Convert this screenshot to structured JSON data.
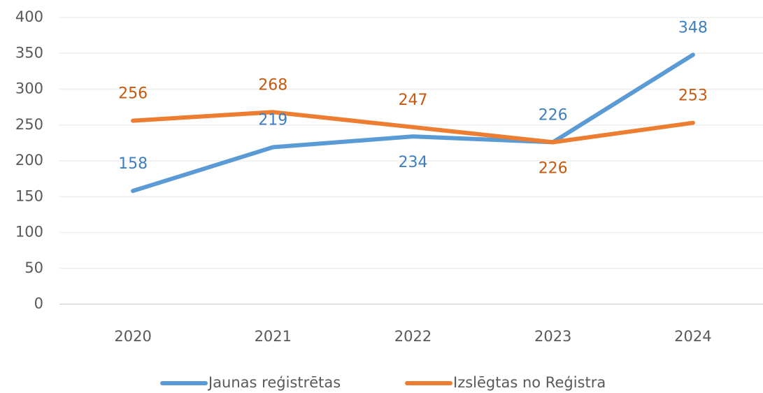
{
  "chart_data": {
    "type": "line",
    "categories": [
      "2020",
      "2021",
      "2022",
      "2023",
      "2024"
    ],
    "series": [
      {
        "name": "Jaunas reģistrētas",
        "color": "#5b9bd5",
        "values": [
          158,
          219,
          234,
          226,
          348
        ]
      },
      {
        "name": "Izslēgtas no Reģistra",
        "color": "#ed7d31",
        "values": [
          256,
          268,
          247,
          226,
          253
        ]
      }
    ],
    "ylim": [
      0,
      400
    ],
    "yticks": [
      0,
      50,
      100,
      150,
      200,
      250,
      300,
      350,
      400
    ],
    "grid": true,
    "legend": "bottom"
  }
}
